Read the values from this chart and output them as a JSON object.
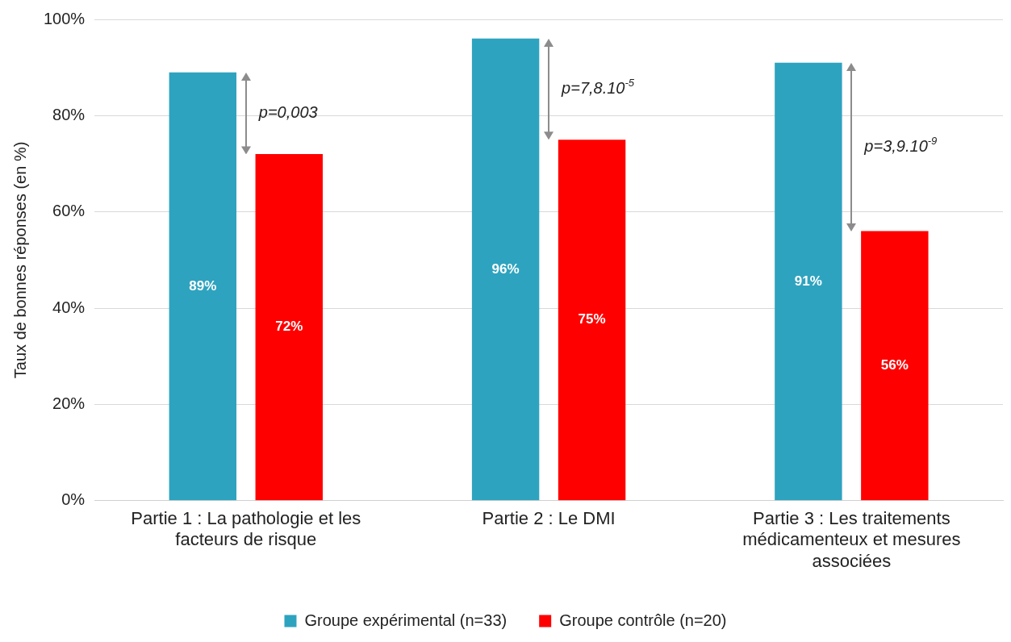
{
  "chart_data": {
    "type": "bar",
    "ylabel": "Taux de bonnes réponses (en %)",
    "categories": [
      "Partie 1 : La pathologie et les facteurs de risque",
      "Partie 2 : Le DMI",
      "Partie 3 : Les traitements médicamenteux et mesures associées"
    ],
    "series": [
      {
        "name": "Groupe expérimental (n=33)",
        "color": "#2ea3bf",
        "values": [
          89,
          96,
          91
        ],
        "value_labels": [
          "89%",
          "96%",
          "91%"
        ]
      },
      {
        "name": "Groupe contrôle (n=20)",
        "color": "#ff0000",
        "values": [
          72,
          75,
          56
        ],
        "value_labels": [
          "72%",
          "75%",
          "56%"
        ]
      }
    ],
    "ylim": [
      0,
      100
    ],
    "yticks": [
      {
        "value": 0,
        "label": "0%"
      },
      {
        "value": 20,
        "label": "20%"
      },
      {
        "value": 40,
        "label": "40%"
      },
      {
        "value": 60,
        "label": "60%"
      },
      {
        "value": 80,
        "label": "80%"
      },
      {
        "value": 100,
        "label": "100%"
      }
    ],
    "grid": "y",
    "legend": "bottom",
    "annotations": [
      "p=0,003",
      "p=7,8.10$^{-5}$",
      "p=3,9.10$^{-9}$"
    ]
  }
}
